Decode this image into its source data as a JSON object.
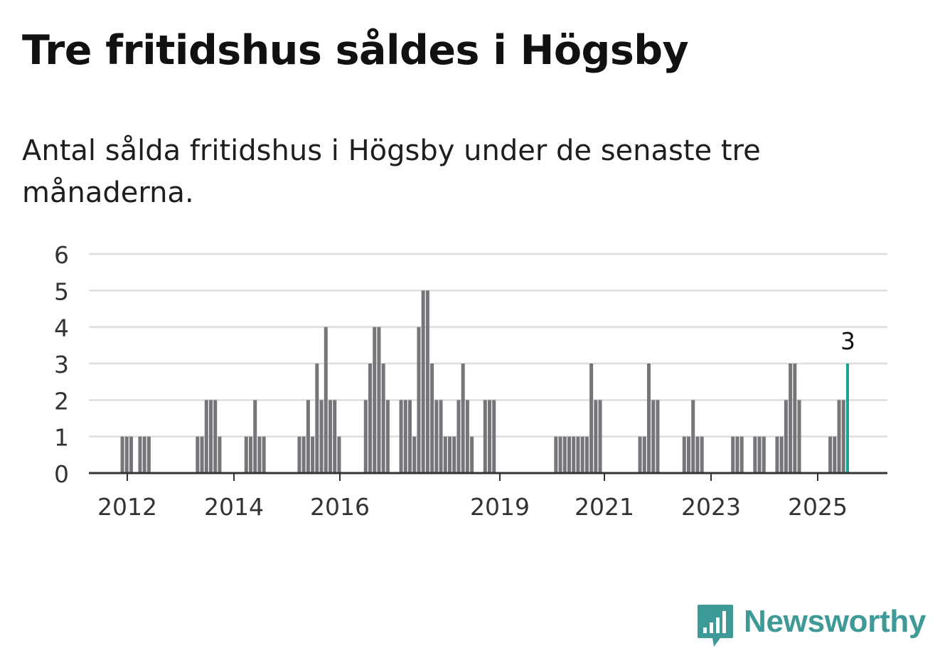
{
  "title": "Tre fritidshus såldes i Högsby",
  "subtitle": "Antal sålda fritidshus i Högsby under de senaste tre månaderna.",
  "brand": {
    "name": "Newsworthy",
    "icon": "bar-chart-speech-icon",
    "color": "#3d9a96"
  },
  "chart_data": {
    "type": "bar",
    "x_start": "2011-01",
    "x_end": "2025-07",
    "x_ticks": [
      "2012",
      "2014",
      "2016",
      "2019",
      "2021",
      "2023",
      "2025"
    ],
    "y_ticks": [
      0,
      1,
      2,
      3,
      4,
      5,
      6
    ],
    "ylim": [
      0,
      6
    ],
    "grid": true,
    "bar_color": "#76757a",
    "highlight_color": "#17a397",
    "highlight_label": "3",
    "series": [
      {
        "points": [
          {
            "x": "2011-11",
            "y": 1
          },
          {
            "x": "2011-12",
            "y": 1
          },
          {
            "x": "2012-01",
            "y": 1
          },
          {
            "x": "2012-03",
            "y": 1
          },
          {
            "x": "2012-04",
            "y": 1
          },
          {
            "x": "2012-05",
            "y": 1
          },
          {
            "x": "2013-04",
            "y": 1
          },
          {
            "x": "2013-05",
            "y": 1
          },
          {
            "x": "2013-06",
            "y": 2
          },
          {
            "x": "2013-07",
            "y": 2
          },
          {
            "x": "2013-08",
            "y": 2
          },
          {
            "x": "2013-09",
            "y": 1
          },
          {
            "x": "2014-03",
            "y": 1
          },
          {
            "x": "2014-04",
            "y": 1
          },
          {
            "x": "2014-05",
            "y": 2
          },
          {
            "x": "2014-06",
            "y": 1
          },
          {
            "x": "2014-07",
            "y": 1
          },
          {
            "x": "2015-03",
            "y": 1
          },
          {
            "x": "2015-04",
            "y": 1
          },
          {
            "x": "2015-05",
            "y": 2
          },
          {
            "x": "2015-06",
            "y": 1
          },
          {
            "x": "2015-07",
            "y": 3
          },
          {
            "x": "2015-08",
            "y": 2
          },
          {
            "x": "2015-09",
            "y": 4
          },
          {
            "x": "2015-10",
            "y": 2
          },
          {
            "x": "2015-11",
            "y": 2
          },
          {
            "x": "2015-12",
            "y": 1
          },
          {
            "x": "2016-06",
            "y": 2
          },
          {
            "x": "2016-07",
            "y": 3
          },
          {
            "x": "2016-08",
            "y": 4
          },
          {
            "x": "2016-09",
            "y": 4
          },
          {
            "x": "2016-10",
            "y": 3
          },
          {
            "x": "2016-11",
            "y": 2
          },
          {
            "x": "2017-02",
            "y": 2
          },
          {
            "x": "2017-03",
            "y": 2
          },
          {
            "x": "2017-04",
            "y": 2
          },
          {
            "x": "2017-05",
            "y": 1
          },
          {
            "x": "2017-06",
            "y": 4
          },
          {
            "x": "2017-07",
            "y": 5
          },
          {
            "x": "2017-08",
            "y": 5
          },
          {
            "x": "2017-09",
            "y": 3
          },
          {
            "x": "2017-10",
            "y": 2
          },
          {
            "x": "2017-11",
            "y": 2
          },
          {
            "x": "2017-12",
            "y": 1
          },
          {
            "x": "2018-01",
            "y": 1
          },
          {
            "x": "2018-02",
            "y": 1
          },
          {
            "x": "2018-03",
            "y": 2
          },
          {
            "x": "2018-04",
            "y": 3
          },
          {
            "x": "2018-05",
            "y": 2
          },
          {
            "x": "2018-06",
            "y": 1
          },
          {
            "x": "2018-09",
            "y": 2
          },
          {
            "x": "2018-10",
            "y": 2
          },
          {
            "x": "2018-11",
            "y": 2
          },
          {
            "x": "2020-01",
            "y": 1
          },
          {
            "x": "2020-02",
            "y": 1
          },
          {
            "x": "2020-03",
            "y": 1
          },
          {
            "x": "2020-04",
            "y": 1
          },
          {
            "x": "2020-05",
            "y": 1
          },
          {
            "x": "2020-06",
            "y": 1
          },
          {
            "x": "2020-07",
            "y": 1
          },
          {
            "x": "2020-08",
            "y": 1
          },
          {
            "x": "2020-09",
            "y": 3
          },
          {
            "x": "2020-10",
            "y": 2
          },
          {
            "x": "2020-11",
            "y": 2
          },
          {
            "x": "2021-08",
            "y": 1
          },
          {
            "x": "2021-09",
            "y": 1
          },
          {
            "x": "2021-10",
            "y": 3
          },
          {
            "x": "2021-11",
            "y": 2
          },
          {
            "x": "2021-12",
            "y": 2
          },
          {
            "x": "2022-06",
            "y": 1
          },
          {
            "x": "2022-07",
            "y": 1
          },
          {
            "x": "2022-08",
            "y": 2
          },
          {
            "x": "2022-09",
            "y": 1
          },
          {
            "x": "2022-10",
            "y": 1
          },
          {
            "x": "2023-05",
            "y": 1
          },
          {
            "x": "2023-06",
            "y": 1
          },
          {
            "x": "2023-07",
            "y": 1
          },
          {
            "x": "2023-10",
            "y": 1
          },
          {
            "x": "2023-11",
            "y": 1
          },
          {
            "x": "2023-12",
            "y": 1
          },
          {
            "x": "2024-03",
            "y": 1
          },
          {
            "x": "2024-04",
            "y": 1
          },
          {
            "x": "2024-05",
            "y": 2
          },
          {
            "x": "2024-06",
            "y": 3
          },
          {
            "x": "2024-07",
            "y": 3
          },
          {
            "x": "2024-08",
            "y": 2
          },
          {
            "x": "2025-03",
            "y": 1
          },
          {
            "x": "2025-04",
            "y": 1
          },
          {
            "x": "2025-05",
            "y": 2
          },
          {
            "x": "2025-06",
            "y": 2
          },
          {
            "x": "2025-07",
            "y": 3
          }
        ]
      }
    ]
  }
}
